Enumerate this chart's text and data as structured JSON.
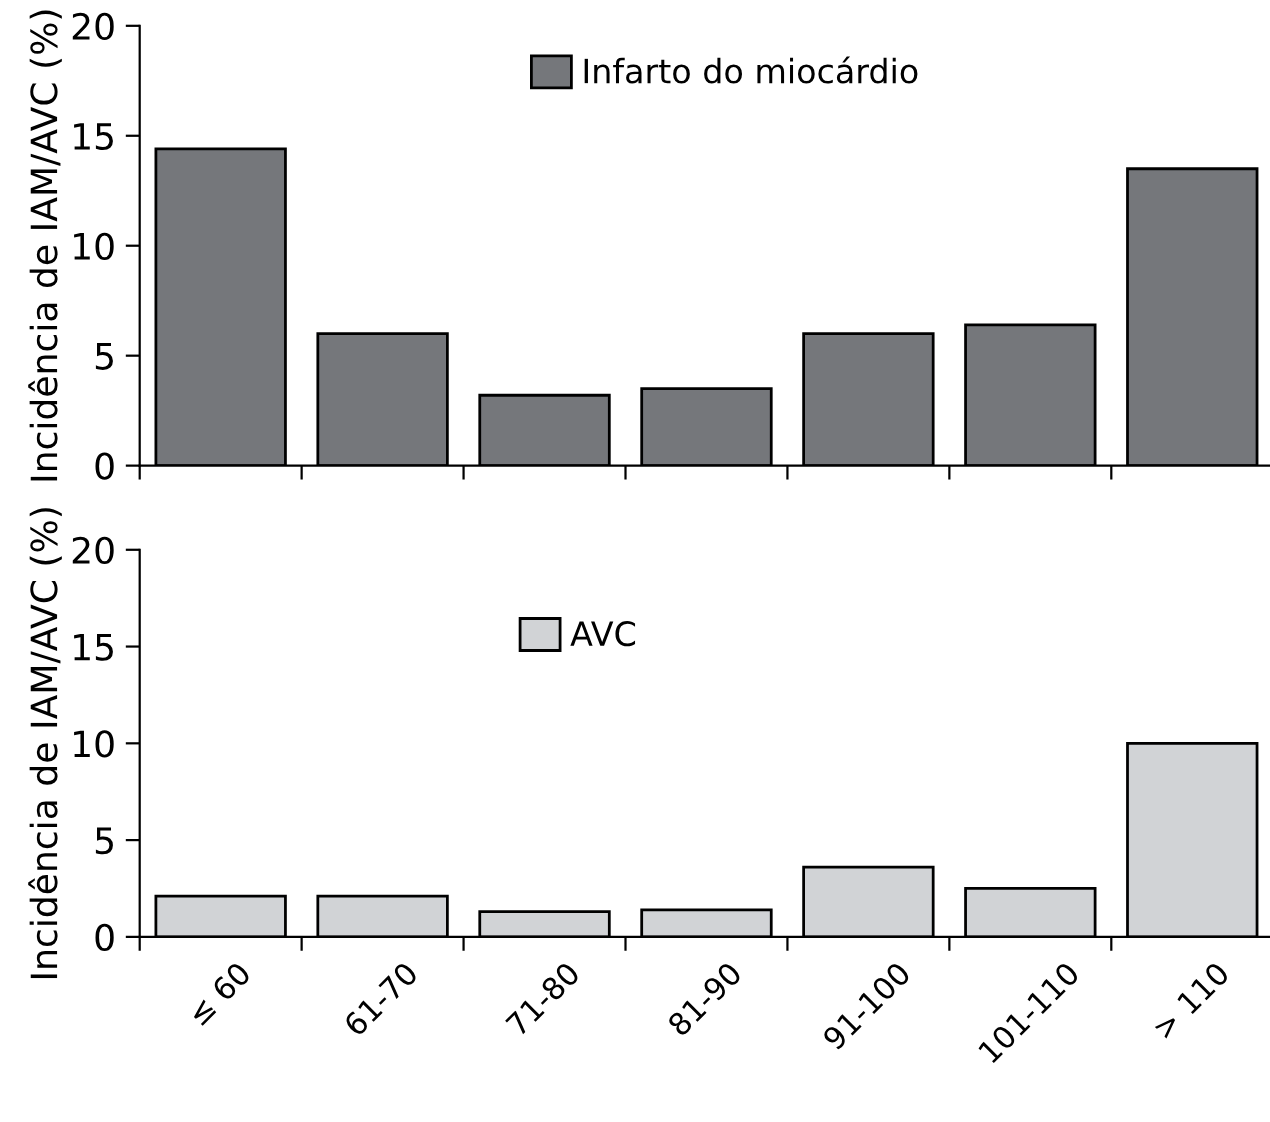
{
  "chart_data": [
    {
      "type": "bar",
      "ylabel": "Incidência de IAM/AVC (%)",
      "categories": [
        null,
        null,
        null,
        null,
        null,
        null,
        null
      ],
      "series": [
        {
          "name": "Infarto do miocárdio",
          "color": "#75777b",
          "values": [
            14.4,
            6.0,
            3.2,
            3.5,
            6.0,
            6.4,
            13.5
          ]
        }
      ],
      "ylim": [
        0,
        20
      ],
      "yticks": [
        0,
        5,
        10,
        15,
        20
      ],
      "legend": "top",
      "tick_labels": "y"
    },
    {
      "type": "bar",
      "ylabel": "Incidência de IAM/AVC (%)",
      "categories": [
        "≤ 60",
        "61-70",
        "71-80",
        "81-90",
        "91-100",
        "101-110",
        "> 110"
      ],
      "series": [
        {
          "name": "AVC",
          "color": "#d1d3d6",
          "values": [
            2.1,
            2.1,
            1.3,
            1.4,
            3.6,
            2.5,
            10.0
          ]
        }
      ],
      "ylim": [
        0,
        20
      ],
      "yticks": [
        0,
        5,
        10,
        15,
        20
      ],
      "legend": "top"
    }
  ]
}
